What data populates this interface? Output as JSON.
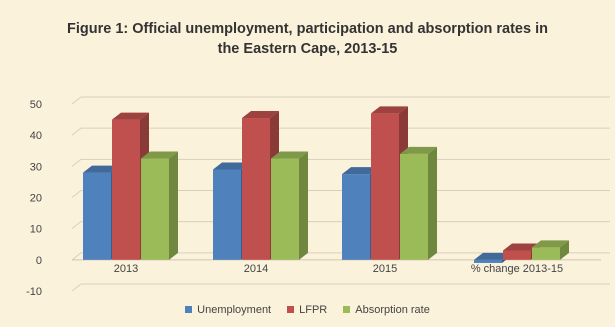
{
  "chart_data": {
    "type": "bar",
    "title_line1": "Figure 1: Official unemployment, participation and absorption rates in",
    "title_line2": "the Eastern Cape, 2013-15",
    "categories": [
      "2013",
      "2014",
      "2015",
      "% change 2013-15"
    ],
    "series": [
      {
        "name": "Unemployment",
        "values": [
          28,
          29,
          27.5,
          -1
        ],
        "color": "#4f81bd"
      },
      {
        "name": "LFPR",
        "values": [
          45,
          45.5,
          47,
          3
        ],
        "color": "#c0504d"
      },
      {
        "name": "Absorption rate",
        "values": [
          32.5,
          32.5,
          34,
          4
        ],
        "color": "#9bbb59"
      }
    ],
    "y_ticks": [
      "-10",
      "0",
      "10",
      "20",
      "30",
      "40",
      "50"
    ],
    "ylim": [
      -10,
      50
    ],
    "grid": true,
    "legend_position": "bottom",
    "three_d": true
  }
}
